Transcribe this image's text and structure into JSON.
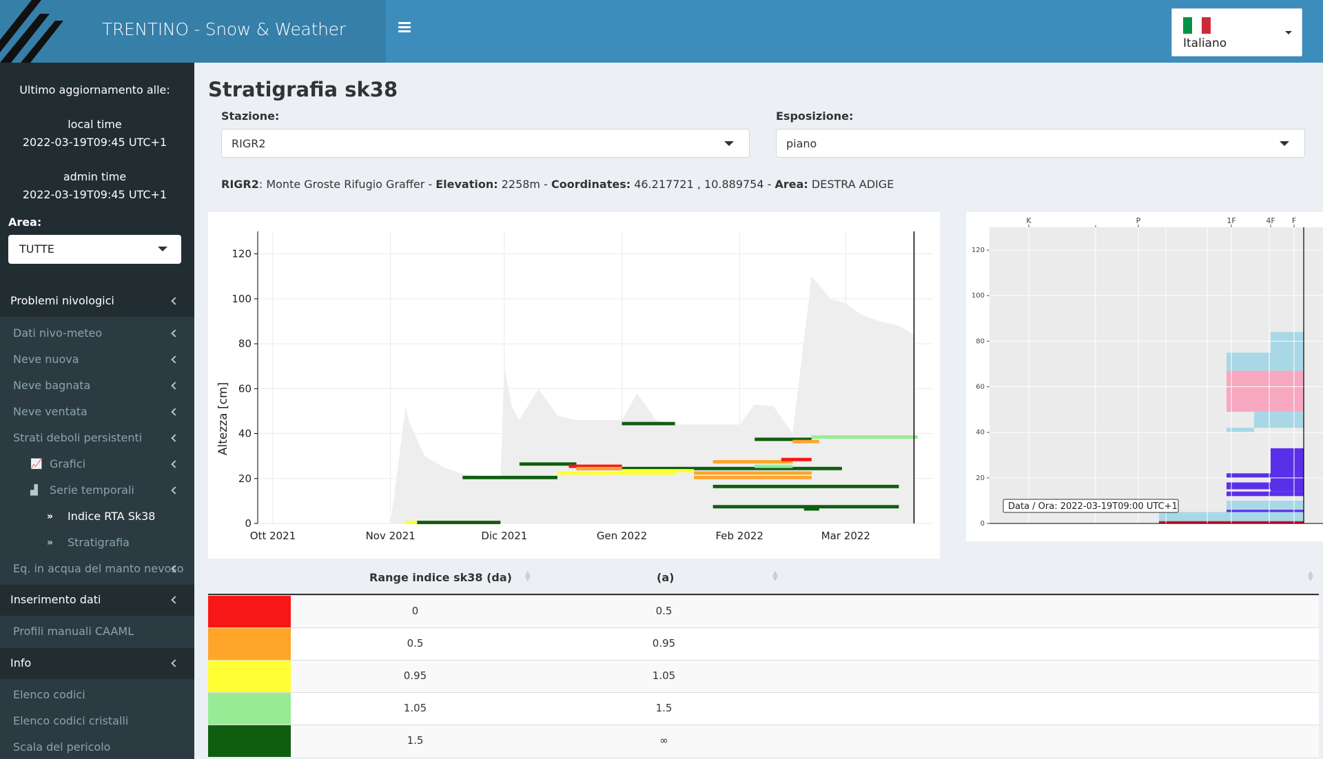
{
  "header": {
    "title": "TRENTINO - Snow & Weather",
    "language": "Italiano",
    "flag_colors": [
      "#009246",
      "#ffffff",
      "#ce2b37"
    ]
  },
  "sidebar": {
    "update_title": "Ultimo aggiornamento alle:",
    "local_label": "local time",
    "local_value": "2022-03-19T09:45 UTC+1",
    "admin_label": "admin time",
    "admin_value": "2022-03-19T09:45 UTC+1",
    "area_label": "Area:",
    "area_value": "TUTTE",
    "menu": {
      "problemi": "Problemi nivologici",
      "dati": "Dati nivo-meteo",
      "neve_nuova": "Neve nuova",
      "neve_bagnata": "Neve bagnata",
      "neve_ventata": "Neve ventata",
      "strati": "Strati deboli persistenti",
      "grafici": "Grafici",
      "serie": "Serie temporali",
      "indice": "Indice RTA Sk38",
      "stratigrafia": "Stratigrafia",
      "eq_acqua": "Eq. in acqua del manto nevoso",
      "inserimento": "Inserimento dati",
      "profili": "Profili manuali CAAML",
      "info": "Info",
      "elenco_codici": "Elenco codici",
      "elenco_cristalli": "Elenco codici cristalli",
      "scala": "Scala del pericolo"
    }
  },
  "main": {
    "title": "Stratigrafia sk38",
    "station_label": "Stazione:",
    "station_value": "RIGR2",
    "exposure_label": "Esposizione:",
    "exposure_value": "piano",
    "info": {
      "code": "RIGR2",
      "name": ": Monte Groste Rifugio Graffer - ",
      "elev_label": "Elevation:",
      "elev_value": " 2258m - ",
      "coord_label": "Coordinates:",
      "coord_value": " 46.217721 , 10.889754 - ",
      "area_label": "Area:",
      "area_value": " DESTRA ADIGE"
    }
  },
  "chart_data": [
    {
      "type": "area",
      "ylabel": "Altezza [cm]",
      "xlabel": "",
      "x_ticks": [
        "Ott 2021",
        "Nov 2021",
        "Dic 2021",
        "Gen 2022",
        "Feb 2022",
        "Mar 2022"
      ],
      "y_ticks": [
        0,
        20,
        40,
        60,
        80,
        100,
        120
      ],
      "ylim": [
        0,
        130
      ],
      "grid": true,
      "snow_depth_series": {
        "x": [
          "2021-11-01",
          "2021-11-05",
          "2021-11-06",
          "2021-11-10",
          "2021-11-15",
          "2021-11-20",
          "2021-11-30",
          "2021-12-01",
          "2021-12-03",
          "2021-12-05",
          "2021-12-10",
          "2021-12-15",
          "2021-12-20",
          "2021-12-25",
          "2022-01-01",
          "2022-01-05",
          "2022-01-10",
          "2022-01-15",
          "2022-01-20",
          "2022-01-25",
          "2022-02-01",
          "2022-02-05",
          "2022-02-10",
          "2022-02-15",
          "2022-02-20",
          "2022-02-25",
          "2022-03-01",
          "2022-03-05",
          "2022-03-10",
          "2022-03-15",
          "2022-03-19"
        ],
        "y": [
          0,
          52,
          45,
          30,
          25,
          22,
          20,
          70,
          52,
          46,
          60,
          48,
          46,
          46,
          46,
          58,
          46,
          44,
          44,
          44,
          44,
          53,
          52,
          40,
          110,
          100,
          98,
          93,
          90,
          88,
          84
        ]
      },
      "sk38_classes": [
        {
          "from": "0",
          "to": "0.5",
          "color": "#f81717"
        },
        {
          "from": "0.5",
          "to": "0.95",
          "color": "#ffa52a"
        },
        {
          "from": "0.95",
          "to": "1.05",
          "color": "#ffff33"
        },
        {
          "from": "1.05",
          "to": "1.5",
          "color": "#98eb95"
        },
        {
          "from": "1.5",
          "to": "∞",
          "color": "#0f5e0f"
        }
      ]
    },
    {
      "type": "bar",
      "top_labels": [
        "K",
        "P",
        "1F",
        "4F",
        "F"
      ],
      "y_ticks": [
        0,
        20,
        40,
        60,
        80,
        100,
        120
      ],
      "tooltip": "Data / Ora: 2022-03-19T09:00 UTC+1"
    }
  ],
  "table": {
    "headers": [
      "Range indice sk38 (da)",
      "(a)"
    ],
    "rows": [
      {
        "from": "0",
        "to": "0.5",
        "color": "#f81717"
      },
      {
        "from": "0.5",
        "to": "0.95",
        "color": "#ffa52a"
      },
      {
        "from": "0.95",
        "to": "1.05",
        "color": "#ffff33"
      },
      {
        "from": "1.05",
        "to": "1.5",
        "color": "#98eb95"
      },
      {
        "from": "1.5",
        "to": "∞",
        "color": "#0f5e0f"
      }
    ]
  }
}
